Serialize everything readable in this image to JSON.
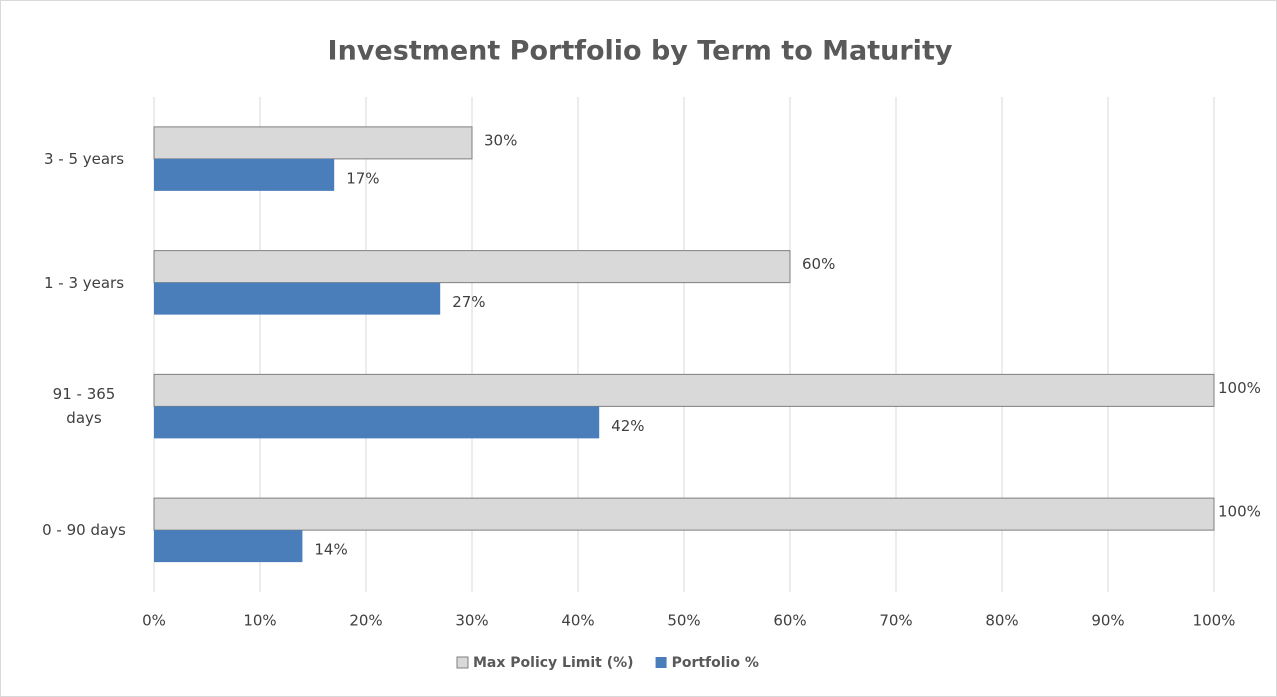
{
  "chart_data": {
    "type": "bar",
    "orientation": "horizontal",
    "title": "Investment Portfolio by Term to Maturity",
    "categories": [
      "0 - 90 days",
      "91 - 365 days",
      "1 - 3 years",
      "3 - 5 years"
    ],
    "series": [
      {
        "name": "Max Policy Limit (%)",
        "color": "#d9d9d9",
        "values": [
          100,
          100,
          60,
          30
        ],
        "value_labels": [
          "100%",
          "100%",
          "60%",
          "30%"
        ]
      },
      {
        "name": "Portfolio %",
        "color": "#4a7ebb",
        "values": [
          14,
          42,
          27,
          17
        ],
        "value_labels": [
          "14%",
          "42%",
          "27%",
          "17%"
        ]
      }
    ],
    "xlim": [
      0,
      100
    ],
    "xticks": [
      {
        "value": 0,
        "label": "0%"
      },
      {
        "value": 10,
        "label": "10%"
      },
      {
        "value": 20,
        "label": "20%"
      },
      {
        "value": 30,
        "label": "30%"
      },
      {
        "value": 40,
        "label": "40%"
      },
      {
        "value": 50,
        "label": "50%"
      },
      {
        "value": 60,
        "label": "60%"
      },
      {
        "value": 70,
        "label": "70%"
      },
      {
        "value": 80,
        "label": "80%"
      },
      {
        "value": 90,
        "label": "90%"
      },
      {
        "value": 100,
        "label": "100%"
      }
    ],
    "grid": true,
    "legend": "bottom"
  }
}
